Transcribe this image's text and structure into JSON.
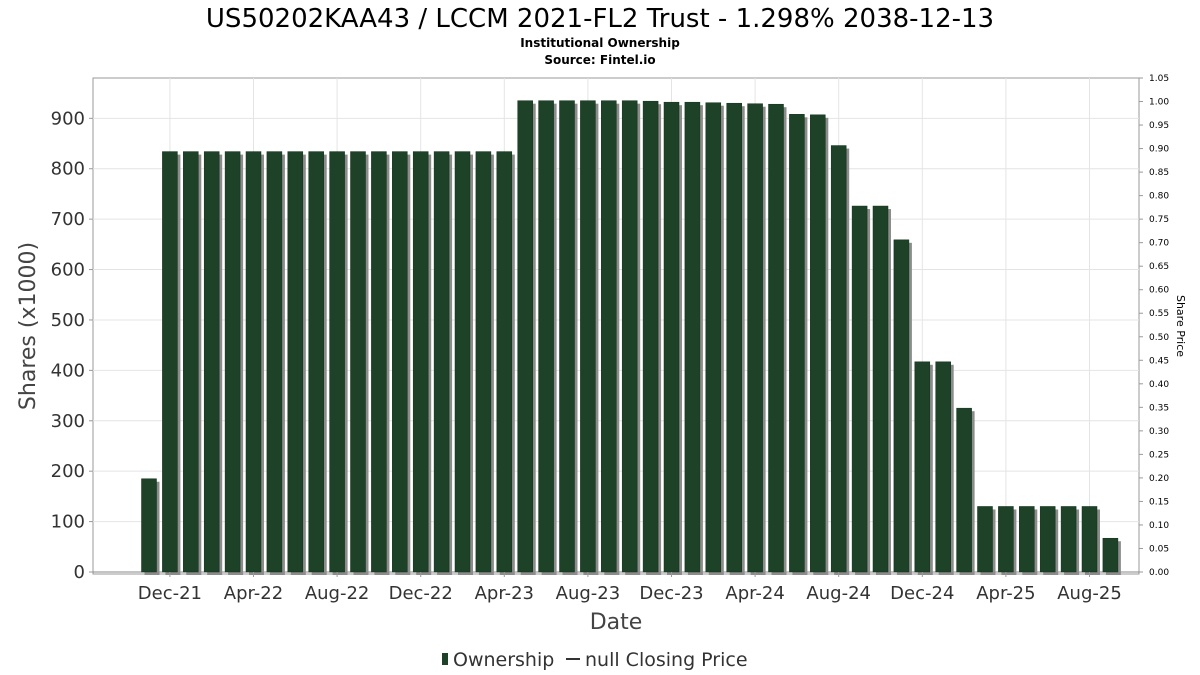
{
  "chart_data": {
    "type": "bar",
    "title": "US50202KAA43 / LCCM 2021-FL2 Trust - 1.298% 2038-12-13",
    "subtitle": "Institutional Ownership",
    "source": "Source: Fintel.io",
    "xlabel": "Date",
    "ylabel": "Shares (x1000)",
    "y2label": "Share Price",
    "ylim": [
      0,
      980
    ],
    "y2lim": [
      0,
      1.05
    ],
    "yticks": [
      "0",
      "100",
      "200",
      "300",
      "400",
      "500",
      "600",
      "700",
      "800",
      "900"
    ],
    "y2ticks": [
      "0.00",
      "0.05",
      "0.10",
      "0.15",
      "0.20",
      "0.25",
      "0.30",
      "0.35",
      "0.40",
      "0.45",
      "0.50",
      "0.55",
      "0.60",
      "0.65",
      "0.70",
      "0.75",
      "0.80",
      "0.85",
      "0.90",
      "0.95",
      "1.00",
      "1.05"
    ],
    "xticks": [
      "Dec-21",
      "Apr-22",
      "Aug-22",
      "Dec-22",
      "Apr-23",
      "Aug-23",
      "Dec-23",
      "Apr-24",
      "Aug-24",
      "Dec-24",
      "Apr-25",
      "Aug-25"
    ],
    "grid": true,
    "legend_position": "bottom-center",
    "series": [
      {
        "name": "Ownership",
        "color": "#1d4228",
        "values": [
          185,
          834,
          834,
          834,
          834,
          834,
          834,
          834,
          834,
          834,
          834,
          834,
          834,
          834,
          834,
          834,
          834,
          834,
          935,
          935,
          935,
          935,
          935,
          935,
          934,
          932,
          932,
          931,
          930,
          929,
          928,
          908,
          907,
          846,
          726,
          726,
          659,
          417,
          417,
          325,
          130,
          130,
          130,
          130,
          130,
          130,
          67
        ]
      },
      {
        "name": "null Closing Price",
        "color": "#333333",
        "values": []
      }
    ]
  }
}
